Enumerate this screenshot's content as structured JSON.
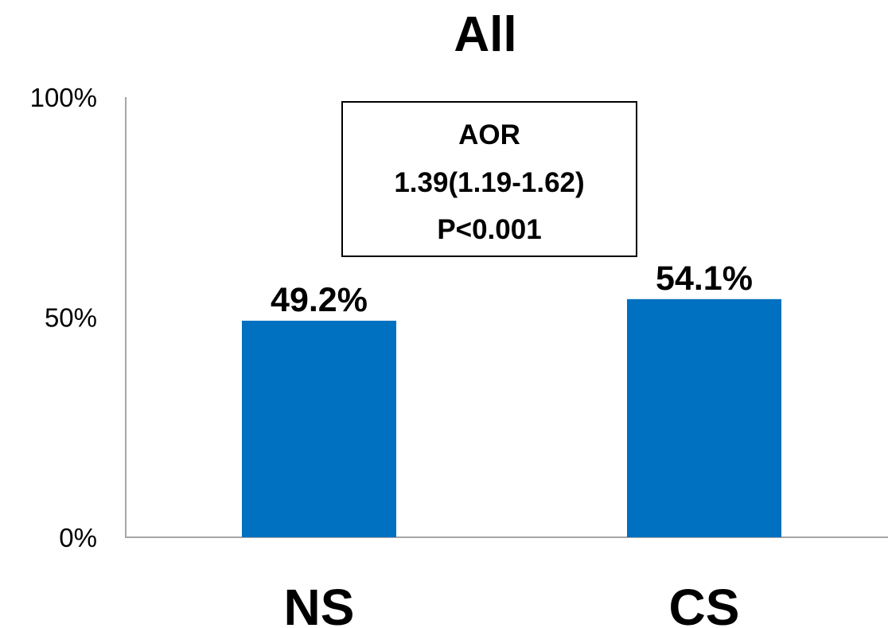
{
  "chart_data": {
    "type": "bar",
    "title": "All",
    "categories": [
      "NS",
      "CS"
    ],
    "values": [
      49.2,
      54.1
    ],
    "data_labels": [
      "49.2%",
      "54.1%"
    ],
    "ylim": [
      0,
      100
    ],
    "yticks": [
      "0%",
      "50%",
      "100%"
    ],
    "xlabel": "",
    "ylabel": "",
    "grid": false,
    "legend": "none",
    "bar_color": "#0070C0",
    "annotation": {
      "lines": [
        "AOR",
        "1.39(1.19-1.62)",
        "P<0.001"
      ]
    }
  }
}
